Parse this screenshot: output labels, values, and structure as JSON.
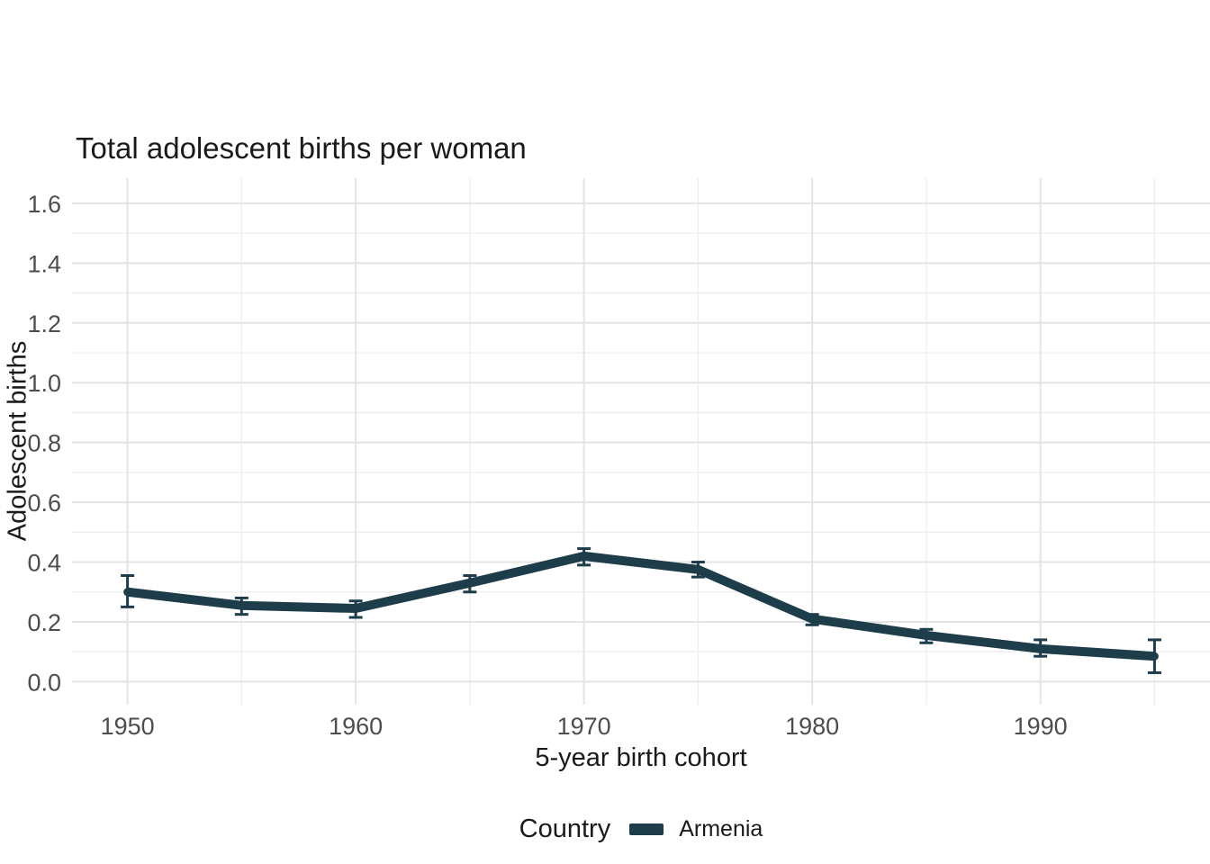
{
  "chart_data": {
    "type": "line",
    "title": "Total adolescent births per woman",
    "xlabel": "5-year birth cohort",
    "ylabel": "Adolescent births",
    "x": [
      1950,
      1955,
      1960,
      1965,
      1970,
      1975,
      1980,
      1985,
      1990,
      1995
    ],
    "series": [
      {
        "name": "Armenia",
        "color": "#1e3d4a",
        "values": [
          0.3,
          0.255,
          0.245,
          0.33,
          0.42,
          0.375,
          0.21,
          0.155,
          0.11,
          0.085
        ],
        "ci_low": [
          0.25,
          0.225,
          0.215,
          0.3,
          0.39,
          0.35,
          0.19,
          0.13,
          0.085,
          0.03
        ],
        "ci_high": [
          0.355,
          0.28,
          0.27,
          0.355,
          0.445,
          0.4,
          0.225,
          0.175,
          0.14,
          0.14
        ]
      }
    ],
    "x_ticks": [
      1950,
      1960,
      1970,
      1980,
      1990
    ],
    "x_minor_ticks": [
      1955,
      1965,
      1975,
      1985,
      1995
    ],
    "y_ticks": [
      0.0,
      0.2,
      0.4,
      0.6,
      0.8,
      1.0,
      1.2,
      1.4,
      1.6
    ],
    "y_tick_labels": [
      "0.0",
      "0.2",
      "0.4",
      "0.6",
      "0.8",
      "1.0",
      "1.2",
      "1.4",
      "1.6"
    ],
    "y_minor_ticks": [
      0.1,
      0.3,
      0.5,
      0.7,
      0.9,
      1.1,
      1.3,
      1.5
    ],
    "xlim": [
      1947.57,
      1997.43
    ],
    "ylim": [
      -0.077,
      1.684
    ],
    "grid": true,
    "legend": {
      "title": "Country",
      "position": "bottom",
      "entries": [
        {
          "label": "Armenia",
          "color": "#1e3d4a"
        }
      ]
    },
    "colors": {
      "series": "#1e3d4a",
      "grid_major": "#e4e4e4",
      "grid_minor": "#eeeeee",
      "tick_label": "#4d4d4d",
      "text": "#1a1a1a",
      "background": "#ffffff"
    }
  }
}
